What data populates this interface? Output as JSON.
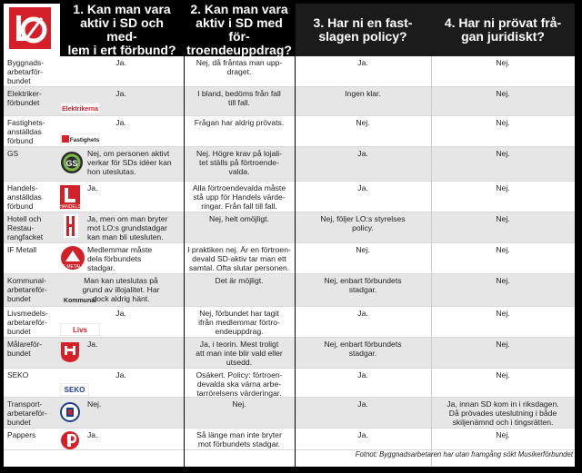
{
  "headers": {
    "q1": "1. Kan man vara\naktiv i SD och med-\nlem i ert förbund?",
    "q2": "2. Kan man vara\naktiv i SD med för-\ntroendeuppdrag?",
    "q3": "3. Har ni en fast-\nslagen policy?",
    "q4": "4. Har ni prövat frå-\ngan juridiskt?"
  },
  "logo": {
    "name": "LO"
  },
  "rows": [
    {
      "union": "Byggnads-\narbetarför-\nbundet",
      "logo": "none",
      "a1": "Ja.",
      "a2": "Nej, då fråntas man upp-\ndraget.",
      "a3": "Ja.",
      "a4": "Nej."
    },
    {
      "union": "Elektriker-\nförbundet",
      "logo": "Elektrikerna",
      "a1": "Ja.",
      "a2": "I bland, bedöms från fall\ntill fall.",
      "a3": "Ingen klar.",
      "a4": "Nej."
    },
    {
      "union": "Fastighets-\nanställdas\nförbund",
      "logo": "Fastighets",
      "a1": "Ja.",
      "a2": "Frågan har aldrig prövats.",
      "a3": "Nej.",
      "a4": "Nej."
    },
    {
      "union": "GS",
      "logo": "GS",
      "a1": "Nej, om personen aktivt\nverkar för SDs idéer kan\nhon uteslutas.",
      "a2": "Nej. Högre krav på lojali-\ntet ställs på förtroende-\nvalda.",
      "a3": "Ja.",
      "a4": "Nej."
    },
    {
      "union": "Handels-\nanställdas\nförbund",
      "logo": "Handels",
      "a1": "Ja.",
      "a2": "Alla förtroendevalda måste\nstå upp för Handels värde-\nringar. Från fall till fall.",
      "a3": "Ja.",
      "a4": "Nej."
    },
    {
      "union": "Hotell och\nRestau-\nrangfacket",
      "logo": "HRF",
      "a1": "Ja, men om man bryter\nmot LO:s grundstadgar\nkan man bli utesluten.",
      "a2": "Nej, helt omöjligt.",
      "a3": "Nej, följer LO:s styrelses\npolicy.",
      "a4": "Nej."
    },
    {
      "union": "IF Metall",
      "logo": "IF Metall",
      "a1": "Medlemmar måste\ndela förbundets\nstadgar.",
      "a2": "I praktiken nej. Är en förtroen-\ndevald SD-aktiv tar man ett\nsamtal. Ofta slutar personen.",
      "a3": "Nej.",
      "a4": "Nej."
    },
    {
      "union": "Kommunal-\narbetareför-\nbundet",
      "logo": "Kommunal",
      "a1": "Man kan uteslutas på\ngrund av illojalitet. Har\ndock aldrig hänt.",
      "a2": "Det är möjligt.",
      "a3": "Nej, enbart förbundets\nstadgar.",
      "a4": "Nej."
    },
    {
      "union": "Livsmedels-\narbetareför-\nbundet",
      "logo": "Livs",
      "a1": "Ja.",
      "a2": "Nej, förbundet har tagit\nifrån medlemmar förtro-\nendeuppdrag.",
      "a3": "Ja.",
      "a4": "Nej."
    },
    {
      "union": "Målareför-\nbundet",
      "logo": "Målarna",
      "a1": "Ja.",
      "a2": "Ja, i teorin. Mest troligt\natt man inte blir vald eller\nutsedd.",
      "a3": "Nej, enbart förbundets\nstadgar.",
      "a4": "Nej."
    },
    {
      "union": "SEKO",
      "logo": "SEKO",
      "a1": "Ja.",
      "a2": "Osäkert. Policy: förtroen-\ndevalda ska värna arbe-\ntarrörelsens värderingar.",
      "a3": "Ja.",
      "a4": "Nej."
    },
    {
      "union": "Transport-\narbetareför-\nbundet",
      "logo": "Transport",
      "a1": "Nej.",
      "a2": "Nej.",
      "a3": "Ja.",
      "a4": "Ja, innan SD kom in i riksdagen.\nDå prövades uteslutning i både\nskiljenämnd och i tingsrätten."
    },
    {
      "union": "Pappers",
      "logo": "Pappers",
      "a1": "Ja.",
      "a2": "Så länge man inte bryter\nmot förbundets stadgar.",
      "a3": "Ja.",
      "a4": "Nej."
    }
  ],
  "footnote": "Fotnot: Byggnadsarbetaren har utan framgång sökt Musikerförbundet"
}
